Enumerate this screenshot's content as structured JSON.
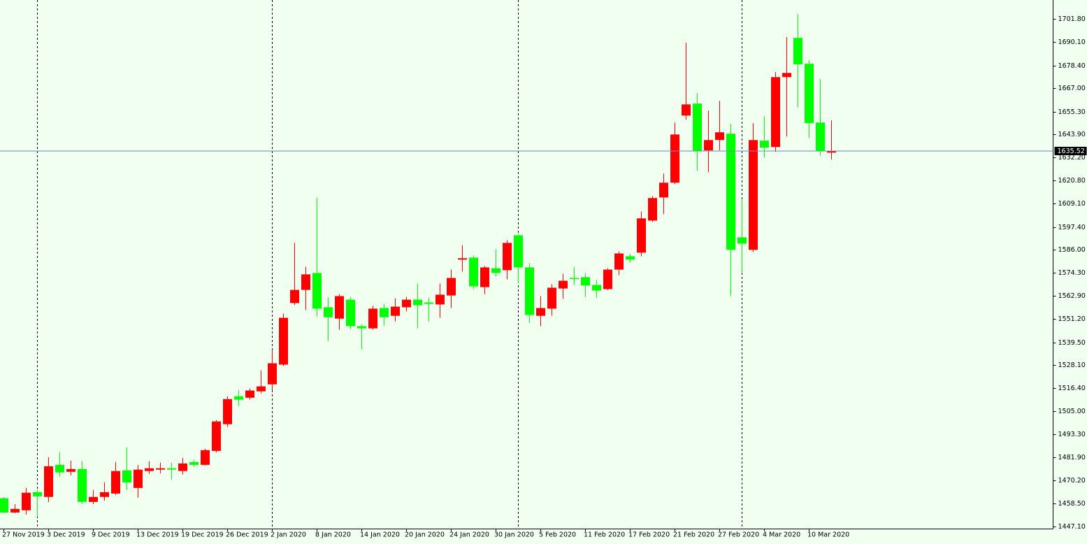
{
  "chart_data": {
    "type": "candlestick",
    "categories": [
      "27 Nov 2019",
      null,
      null,
      null,
      "3 Dec 2019",
      null,
      null,
      null,
      "9 Dec 2019",
      null,
      null,
      null,
      "13 Dec 2019",
      null,
      null,
      null,
      "19 Dec 2019",
      null,
      null,
      null,
      "26 Dec 2019",
      null,
      null,
      null,
      "2 Jan 2020",
      null,
      null,
      null,
      "8 Jan 2020",
      null,
      null,
      null,
      "14 Jan 2020",
      null,
      null,
      null,
      "20 Jan 2020",
      null,
      null,
      null,
      "24 Jan 2020",
      null,
      null,
      null,
      "30 Jan 2020",
      null,
      null,
      null,
      "5 Feb 2020",
      null,
      null,
      null,
      "11 Feb 2020",
      null,
      null,
      null,
      "17 Feb 2020",
      null,
      null,
      null,
      "21 Feb 2020",
      null,
      null,
      null,
      "27 Feb 2020",
      null,
      null,
      null,
      "4 Mar 2020",
      null,
      null,
      null,
      "10 Mar 2020",
      null,
      null
    ],
    "open": [
      1461.2,
      1454.1,
      1455.2,
      1464.3,
      1461.9,
      1478.0,
      1474.5,
      1475.9,
      1459.4,
      1461.9,
      1463.6,
      1475.2,
      1466.4,
      1474.9,
      1475.6,
      1476.3,
      1474.9,
      1479.4,
      1478.0,
      1485.0,
      1498.4,
      1512.4,
      1511.7,
      1514.9,
      1518.4,
      1528.3,
      1559.2,
      1565.8,
      1574.3,
      1557.1,
      1551.4,
      1560.9,
      1547.6,
      1546.5,
      1556.7,
      1552.8,
      1557.1,
      1560.9,
      1559.5,
      1558.5,
      1563.0,
      1581.0,
      1582.0,
      1567.2,
      1576.7,
      1575.7,
      1593.2,
      1577.1,
      1552.8,
      1556.4,
      1566.5,
      1571.8,
      1572.2,
      1568.3,
      1566.2,
      1576.0,
      1582.7,
      1584.5,
      1600.6,
      1612.2,
      1619.6,
      1653.3,
      1659.3,
      1635.8,
      1641.0,
      1644.2,
      1592.2,
      1585.9,
      1640.7,
      1637.5,
      1672.6,
      1692.3,
      1679.3,
      1649.8,
      1634.7
    ],
    "high": [
      1461.9,
      1458.3,
      1466.4,
      1465.4,
      1481.9,
      1484.3,
      1480.1,
      1479.8,
      1465.4,
      1469.2,
      1479.4,
      1486.8,
      1478.0,
      1479.8,
      1479.1,
      1479.1,
      1481.5,
      1480.5,
      1486.1,
      1500.5,
      1512.4,
      1515.3,
      1516.3,
      1525.4,
      1535.6,
      1553.9,
      1589.4,
      1577.4,
      1611.9,
      1562.0,
      1563.7,
      1562.3,
      1548.6,
      1557.8,
      1558.8,
      1561.6,
      1562.3,
      1569.0,
      1562.0,
      1569.0,
      1576.0,
      1588.3,
      1583.1,
      1577.8,
      1586.2,
      1590.8,
      1593.9,
      1579.2,
      1562.7,
      1568.7,
      1573.9,
      1577.4,
      1574.3,
      1570.8,
      1576.7,
      1585.2,
      1583.8,
      1605.2,
      1612.9,
      1624.2,
      1649.8,
      1689.9,
      1664.6,
      1655.8,
      1660.7,
      1649.1,
      1611.2,
      1649.5,
      1653.0,
      1675.1,
      1692.7,
      1704.3,
      1681.1,
      1671.6,
      1650.9
    ],
    "low": [
      1453.8,
      1453.8,
      1453.1,
      1452.0,
      1459.4,
      1472.0,
      1472.7,
      1458.3,
      1458.3,
      1460.1,
      1462.9,
      1465.4,
      1461.5,
      1473.4,
      1473.8,
      1470.6,
      1473.1,
      1477.0,
      1477.7,
      1484.3,
      1497.0,
      1507.5,
      1510.7,
      1513.9,
      1515.3,
      1527.6,
      1558.1,
      1555.7,
      1552.5,
      1540.2,
      1545.8,
      1546.2,
      1536.0,
      1545.8,
      1547.9,
      1550.0,
      1555.0,
      1546.5,
      1550.0,
      1551.8,
      1556.7,
      1575.0,
      1566.2,
      1563.7,
      1572.5,
      1571.1,
      1569.0,
      1549.3,
      1547.6,
      1552.8,
      1561.3,
      1568.3,
      1562.3,
      1562.0,
      1565.8,
      1573.2,
      1579.5,
      1582.7,
      1599.9,
      1603.8,
      1618.9,
      1651.2,
      1625.6,
      1624.9,
      1635.8,
      1562.7,
      1574.6,
      1584.8,
      1632.2,
      1635.1,
      1642.8,
      1657.5,
      1642.1,
      1633.3,
      1631.2
    ],
    "close": [
      1454.1,
      1455.9,
      1464.0,
      1462.2,
      1477.3,
      1474.2,
      1475.9,
      1459.4,
      1461.9,
      1464.3,
      1474.9,
      1469.2,
      1475.6,
      1476.3,
      1476.3,
      1475.6,
      1478.7,
      1478.0,
      1485.4,
      1499.8,
      1511.0,
      1510.7,
      1515.3,
      1517.4,
      1529.0,
      1551.8,
      1565.8,
      1573.6,
      1556.4,
      1552.1,
      1562.7,
      1547.6,
      1546.5,
      1556.4,
      1552.1,
      1557.4,
      1560.9,
      1558.1,
      1558.8,
      1563.4,
      1571.8,
      1581.7,
      1567.6,
      1577.1,
      1574.3,
      1589.4,
      1577.1,
      1553.2,
      1556.7,
      1566.9,
      1570.4,
      1571.5,
      1568.0,
      1565.5,
      1576.0,
      1584.1,
      1581.0,
      1601.7,
      1611.9,
      1619.6,
      1643.8,
      1658.9,
      1635.4,
      1641.0,
      1644.9,
      1585.9,
      1589.0,
      1641.0,
      1637.2,
      1672.6,
      1674.7,
      1679.0,
      1649.5,
      1635.4,
      1635.52
    ],
    "up_color": "#ff0000",
    "down_color": "#00ff00",
    "last_price": 1635.52,
    "last_price_color": "#6a8cb4",
    "ylim": [
      1446.0,
      1711.3
    ],
    "yticks": [
      {
        "value": 1447.1,
        "label": "1447.10"
      },
      {
        "value": 1458.5,
        "label": "1458.50"
      },
      {
        "value": 1470.2,
        "label": "1470.20"
      },
      {
        "value": 1481.9,
        "label": "1481.90"
      },
      {
        "value": 1493.3,
        "label": "1493.30"
      },
      {
        "value": 1505.0,
        "label": "1505.00"
      },
      {
        "value": 1516.4,
        "label": "1516.40"
      },
      {
        "value": 1528.1,
        "label": "1528.10"
      },
      {
        "value": 1539.5,
        "label": "1539.50"
      },
      {
        "value": 1551.2,
        "label": "1551.20"
      },
      {
        "value": 1562.9,
        "label": "1562.90"
      },
      {
        "value": 1574.3,
        "label": "1574.30"
      },
      {
        "value": 1586.0,
        "label": "1586.00"
      },
      {
        "value": 1597.4,
        "label": "1597.40"
      },
      {
        "value": 1609.1,
        "label": "1609.10"
      },
      {
        "value": 1620.8,
        "label": "1620.80"
      },
      {
        "value": 1632.2,
        "label": "1632.20"
      },
      {
        "value": 1643.9,
        "label": "1643.90"
      },
      {
        "value": 1655.3,
        "label": "1655.30"
      },
      {
        "value": 1667.0,
        "label": "1667.00"
      },
      {
        "value": 1678.4,
        "label": "1678.40"
      },
      {
        "value": 1690.1,
        "label": "1690.10"
      },
      {
        "value": 1701.8,
        "label": "1701.80"
      }
    ]
  }
}
